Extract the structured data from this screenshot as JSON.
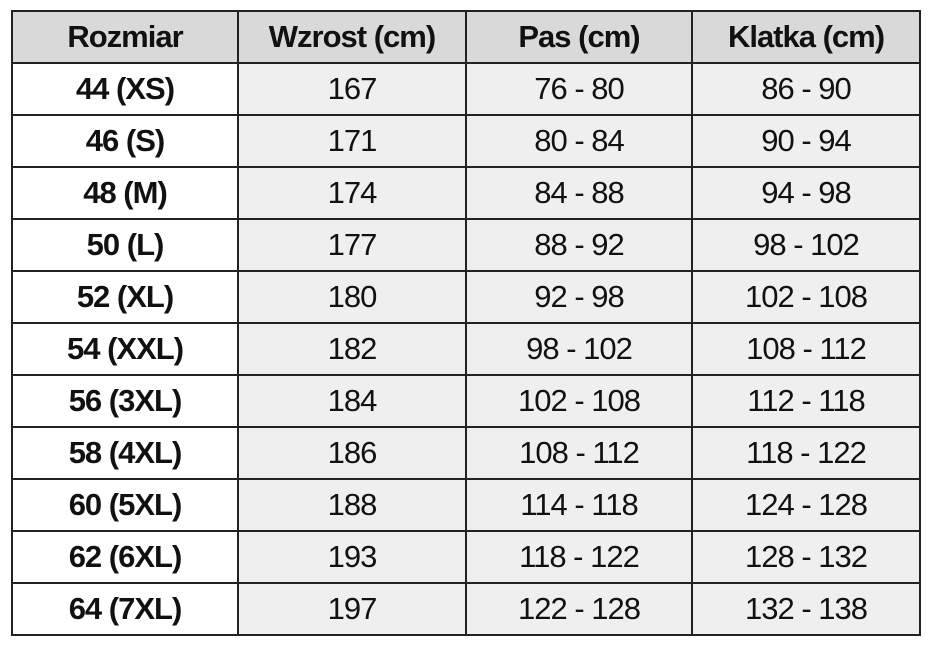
{
  "table": {
    "header": [
      "Rozmiar",
      "Wzrost (cm)",
      "Pas (cm)",
      "Klatka (cm)"
    ],
    "rows": [
      [
        "44 (XS)",
        "167",
        "76 - 80",
        "86 - 90"
      ],
      [
        "46 (S)",
        "171",
        "80 - 84",
        "90 - 94"
      ],
      [
        "48 (M)",
        "174",
        "84 - 88",
        "94 - 98"
      ],
      [
        "50 (L)",
        "177",
        "88 - 92",
        "98 - 102"
      ],
      [
        "52 (XL)",
        "180",
        "92 - 98",
        "102 - 108"
      ],
      [
        "54 (XXL)",
        "182",
        "98 - 102",
        "108 - 112"
      ],
      [
        "56 (3XL)",
        "184",
        "102 - 108",
        "112 - 118"
      ],
      [
        "58 (4XL)",
        "186",
        "108 - 112",
        "118 - 122"
      ],
      [
        "60 (5XL)",
        "188",
        "114 - 118",
        "124 - 128"
      ],
      [
        "62 (6XL)",
        "193",
        "118 - 122",
        "128 - 132"
      ],
      [
        "64 (7XL)",
        "197",
        "122 - 128",
        "132 - 138"
      ]
    ]
  }
}
